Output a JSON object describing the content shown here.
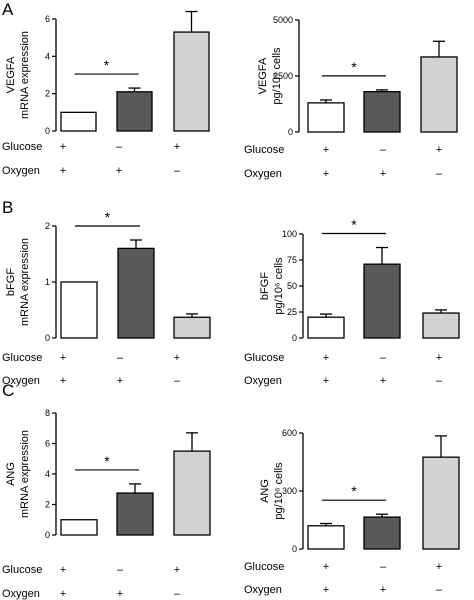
{
  "figure": {
    "panel_letters": [
      "A",
      "B",
      "C"
    ],
    "condition_labels": [
      "Glucose",
      "Oxygen"
    ],
    "conditions": [
      {
        "glucose": "+",
        "oxygen": "+"
      },
      {
        "glucose": "–",
        "oxygen": "+"
      },
      {
        "glucose": "+",
        "oxygen": "–"
      }
    ],
    "bar_colors": [
      "#ffffff",
      "#595959",
      "#d3d3d3"
    ],
    "significance_symbol": "*"
  },
  "chart_data": [
    {
      "type": "bar",
      "panel": "A",
      "ylabel": [
        "VEGFA",
        "mRNA expression"
      ],
      "ylim": [
        0,
        6
      ],
      "yticks": [
        "0",
        "2",
        "4",
        "6"
      ],
      "values": [
        1.0,
        2.1,
        5.3
      ],
      "errors": [
        0.0,
        0.2,
        1.1
      ],
      "significance": [
        0,
        1
      ]
    },
    {
      "type": "bar",
      "panel": "A",
      "ylabel": [
        "VEGFA",
        "pg/10⁶ cells"
      ],
      "ylim": [
        0,
        5000
      ],
      "yticks": [
        "0",
        "2500",
        "5000"
      ],
      "values": [
        1300,
        1800,
        3350
      ],
      "errors": [
        130,
        80,
        700
      ],
      "significance": [
        0,
        1
      ]
    },
    {
      "type": "bar",
      "panel": "B",
      "ylabel": [
        "bFGF",
        "mRNA expression"
      ],
      "ylim": [
        0,
        2
      ],
      "yticks": [
        "0",
        "1",
        "2"
      ],
      "values": [
        1.0,
        1.6,
        0.37
      ],
      "errors": [
        0.0,
        0.15,
        0.06
      ],
      "significance": [
        0,
        1
      ]
    },
    {
      "type": "bar",
      "panel": "B",
      "ylabel": [
        "bFGF",
        "pg/10⁶ cells"
      ],
      "ylim": [
        0,
        100
      ],
      "yticks": [
        "0",
        "25",
        "50",
        "75",
        "100"
      ],
      "values": [
        20,
        71,
        24
      ],
      "errors": [
        3,
        16,
        3
      ],
      "significance": [
        0,
        1
      ]
    },
    {
      "type": "bar",
      "panel": "C",
      "ylabel": [
        "ANG",
        "mRNA expression"
      ],
      "ylim": [
        0,
        8
      ],
      "yticks": [
        "0",
        "2",
        "4",
        "6",
        "8"
      ],
      "values": [
        1.0,
        2.75,
        5.5
      ],
      "errors": [
        0.0,
        0.6,
        1.2
      ],
      "significance": [
        0,
        1
      ]
    },
    {
      "type": "bar",
      "panel": "C",
      "ylabel": [
        "ANG",
        "pg/10⁶ cells"
      ],
      "ylim": [
        0,
        600
      ],
      "yticks": [
        "0",
        "300",
        "600"
      ],
      "values": [
        120,
        165,
        475
      ],
      "errors": [
        12,
        15,
        110
      ],
      "significance": [
        0,
        1
      ]
    }
  ]
}
